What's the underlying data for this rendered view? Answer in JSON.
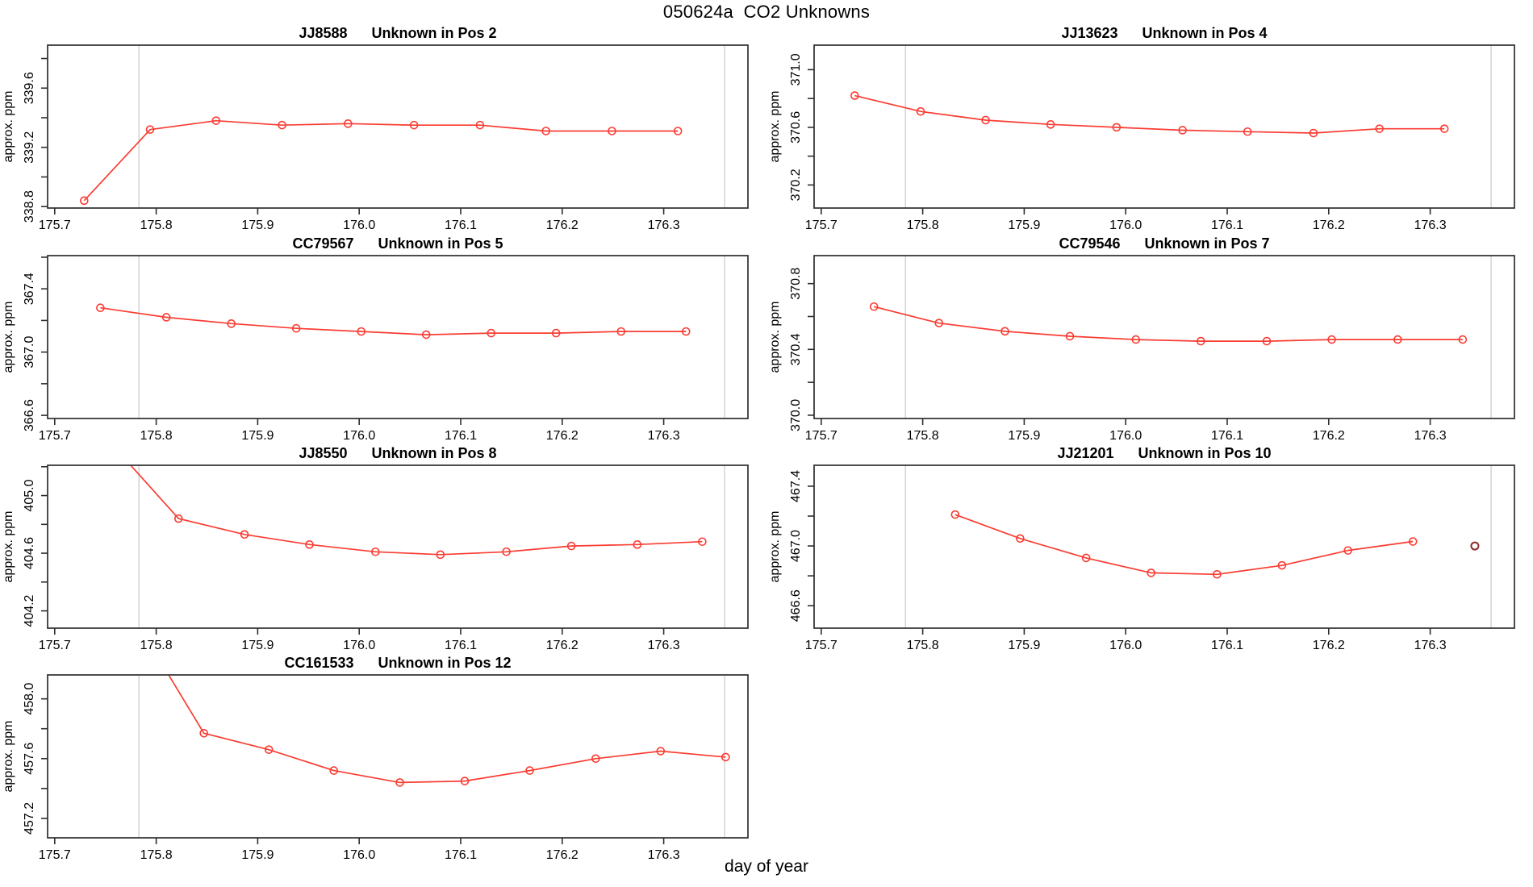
{
  "page": {
    "title": "050624a  CO2 Unknowns",
    "xlabel": "day of year"
  },
  "chart_data": {
    "type": "line",
    "title": "050624a  CO2 Unknowns",
    "xlabel": "day of year",
    "ylabel": "approx. ppm",
    "legend": "none",
    "grid": false,
    "x_axis": {
      "xlim": [
        175.693,
        176.383
      ],
      "xticks": [
        175.7,
        175.8,
        175.9,
        176.0,
        176.1,
        176.2,
        176.3
      ],
      "vlines": [
        175.783,
        176.36
      ]
    },
    "colors": {
      "line": "#fa3c32",
      "marker": "#fa3c32",
      "isolated_marker": "#8b2b26",
      "vline": "#d3d3d3",
      "frame": "#2e2e2e",
      "text": "#000000"
    },
    "charts": [
      {
        "sample": "JJ8588",
        "position_label": "Unknown in Pos 2",
        "row": 0,
        "col": 0,
        "ylabel": "approx. ppm",
        "ylim": [
          338.79,
          339.89
        ],
        "yticks_minor": [
          338.8,
          339.0,
          339.2,
          339.4,
          339.6,
          339.8
        ],
        "ytick_labels": [
          338.8,
          339.2,
          339.6
        ],
        "x": [
          175.729,
          175.794,
          175.859,
          175.924,
          175.989,
          176.054,
          176.119,
          176.184,
          176.249,
          176.314
        ],
        "y": [
          338.84,
          339.32,
          339.38,
          339.35,
          339.36,
          339.35,
          339.35,
          339.31,
          339.31,
          339.31
        ],
        "isolated_point": null
      },
      {
        "sample": "JJ13623",
        "position_label": "Unknown in Pos 4",
        "row": 0,
        "col": 1,
        "ylabel": "approx. ppm",
        "ylim": [
          370.04,
          371.17
        ],
        "yticks_minor": [
          370.2,
          370.4,
          370.6,
          370.8,
          371.0
        ],
        "ytick_labels": [
          370.2,
          370.6,
          371.0
        ],
        "x": [
          175.733,
          175.798,
          175.862,
          175.926,
          175.991,
          176.056,
          176.12,
          176.185,
          176.25,
          176.314
        ],
        "y": [
          370.82,
          370.71,
          370.65,
          370.62,
          370.6,
          370.58,
          370.57,
          370.56,
          370.59,
          370.59
        ],
        "isolated_point": null
      },
      {
        "sample": "CC79567",
        "position_label": "Unknown in Pos 5",
        "row": 1,
        "col": 0,
        "ylabel": "approx. ppm",
        "ylim": [
          366.58,
          367.61
        ],
        "yticks_minor": [
          366.6,
          366.8,
          367.0,
          367.2,
          367.4,
          367.6
        ],
        "ytick_labels": [
          366.6,
          367.0,
          367.4
        ],
        "x": [
          175.745,
          175.81,
          175.874,
          175.938,
          176.002,
          176.066,
          176.13,
          176.194,
          176.258,
          176.322
        ],
        "y": [
          367.28,
          367.22,
          367.18,
          367.15,
          367.13,
          367.11,
          367.12,
          367.12,
          367.13,
          367.13
        ],
        "isolated_point": null
      },
      {
        "sample": "CC79546",
        "position_label": "Unknown in Pos 7",
        "row": 1,
        "col": 1,
        "ylabel": "approx. ppm",
        "ylim": [
          369.98,
          370.97
        ],
        "yticks_minor": [
          370.0,
          370.2,
          370.4,
          370.6,
          370.8
        ],
        "ytick_labels": [
          370.0,
          370.4,
          370.8
        ],
        "x": [
          175.752,
          175.816,
          175.881,
          175.945,
          176.01,
          176.074,
          176.139,
          176.203,
          176.268,
          176.332
        ],
        "y": [
          370.66,
          370.56,
          370.51,
          370.48,
          370.46,
          370.45,
          370.45,
          370.46,
          370.46,
          370.46
        ],
        "isolated_point": null
      },
      {
        "sample": "JJ8550",
        "position_label": "Unknown in Pos 8",
        "row": 2,
        "col": 0,
        "ylabel": "approx. ppm",
        "ylim": [
          404.08,
          405.21
        ],
        "yticks_minor": [
          404.2,
          404.4,
          404.6,
          404.8,
          405.0,
          405.2
        ],
        "ytick_labels": [
          404.2,
          404.6,
          405.0
        ],
        "x": [
          175.757,
          175.822,
          175.887,
          175.951,
          176.016,
          176.08,
          176.145,
          176.209,
          176.274,
          176.338
        ],
        "y": [
          405.35,
          404.84,
          404.73,
          404.66,
          404.61,
          404.59,
          404.61,
          404.65,
          404.66,
          404.68
        ],
        "isolated_point": null
      },
      {
        "sample": "JJ21201",
        "position_label": "Unknown in Pos 10",
        "row": 2,
        "col": 1,
        "ylabel": "approx. ppm",
        "ylim": [
          466.45,
          467.54
        ],
        "yticks_minor": [
          466.6,
          466.8,
          467.0,
          467.2,
          467.4
        ],
        "ytick_labels": [
          466.6,
          467.0,
          467.4
        ],
        "x": [
          175.832,
          175.896,
          175.961,
          176.025,
          176.09,
          176.154,
          176.219,
          176.283
        ],
        "y": [
          467.21,
          467.05,
          466.92,
          466.82,
          466.81,
          466.87,
          466.97,
          467.03
        ],
        "isolated_point": {
          "x": 176.344,
          "y": 467.0
        }
      },
      {
        "sample": "CC161533",
        "position_label": "Unknown in Pos 12",
        "row": 3,
        "col": 0,
        "ylabel": "approx. ppm",
        "ylim": [
          457.07,
          458.16
        ],
        "yticks_minor": [
          457.2,
          457.4,
          457.6,
          457.8,
          458.0
        ],
        "ytick_labels": [
          457.2,
          457.6,
          458.0
        ],
        "x": [
          175.782,
          175.847,
          175.911,
          175.975,
          176.04,
          176.104,
          176.168,
          176.233,
          176.297,
          176.361
        ],
        "y": [
          458.5,
          457.77,
          457.66,
          457.52,
          457.44,
          457.45,
          457.52,
          457.6,
          457.65,
          457.61
        ],
        "isolated_point": null
      }
    ]
  }
}
